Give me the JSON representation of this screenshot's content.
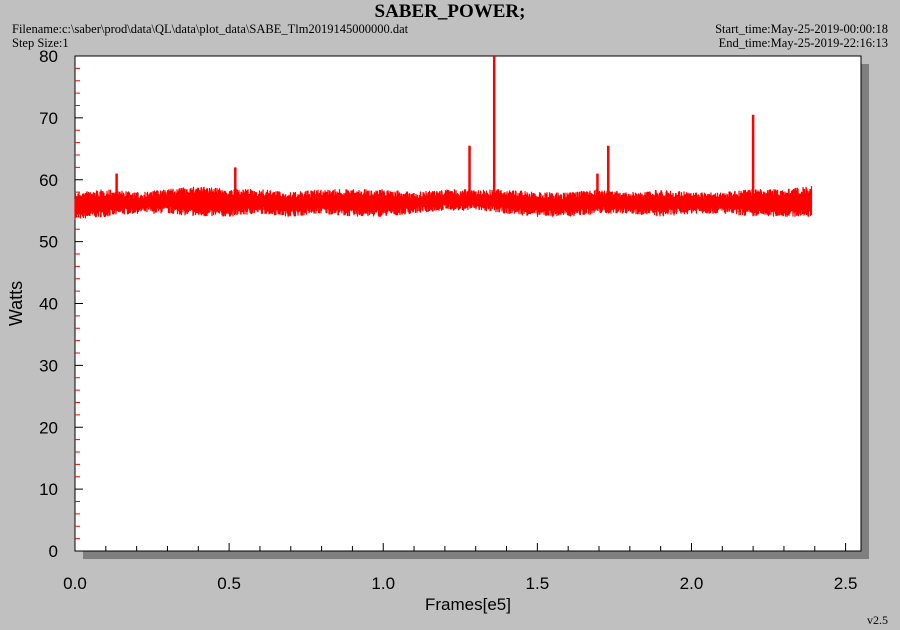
{
  "header": {
    "title": "SABER_POWER;",
    "filename": "Filename:c:\\saber\\prod\\data\\QL\\data\\plot_data\\SABE_Tlm2019145000000.dat",
    "step_size": "Step Size:1",
    "start_time": "Start_time:May-25-2019-00:00:18",
    "end_time": "End_time:May-25-2019-22:16:13"
  },
  "footer": {
    "version": "v2.5"
  },
  "colors": {
    "series": "#ff0000",
    "background": "#c0c0c0",
    "plot_area": "#ffffff",
    "shadow": "#7f7f7f"
  },
  "chart_data": {
    "type": "line",
    "title": "SABER_POWER;",
    "xlabel": "Frames[e5]",
    "ylabel": "Watts",
    "xlim": [
      0,
      2.55
    ],
    "ylim": [
      0,
      80
    ],
    "xticks": [
      "0.0",
      "0.5",
      "1.0",
      "1.5",
      "2.0",
      "2.5"
    ],
    "yticks": [
      "0",
      "10",
      "20",
      "30",
      "40",
      "50",
      "60",
      "70",
      "80"
    ],
    "grid": false,
    "legend": "none",
    "series": [
      {
        "color": "#ff0000",
        "x_range": [
          0,
          2.39
        ],
        "band": {
          "min": 54,
          "max": 59
        },
        "envelope": {
          "x": [
            0.0,
            0.1,
            0.2,
            0.3,
            0.4,
            0.5,
            0.6,
            0.7,
            0.8,
            0.9,
            1.0,
            1.1,
            1.2,
            1.3,
            1.4,
            1.5,
            1.6,
            1.7,
            1.8,
            1.9,
            2.0,
            2.1,
            2.2,
            2.3,
            2.39
          ],
          "min": [
            53.5,
            54.0,
            54.5,
            54.5,
            54.0,
            54.0,
            54.5,
            54.0,
            54.5,
            54.0,
            54.0,
            54.5,
            55.0,
            55.0,
            54.5,
            54.0,
            54.0,
            54.5,
            54.5,
            54.0,
            54.5,
            54.5,
            54.0,
            54.0,
            54.0
          ],
          "max": [
            58.0,
            58.5,
            58.0,
            58.5,
            59.0,
            58.5,
            58.5,
            58.0,
            58.5,
            58.5,
            58.5,
            58.0,
            58.5,
            58.5,
            58.5,
            58.0,
            58.0,
            58.5,
            58.0,
            58.5,
            58.0,
            58.0,
            58.5,
            58.5,
            59.0
          ]
        },
        "spikes": [
          {
            "x": 0.135,
            "y": 61
          },
          {
            "x": 0.52,
            "y": 62
          },
          {
            "x": 1.28,
            "y": 65.5
          },
          {
            "x": 1.36,
            "y": 80
          },
          {
            "x": 1.695,
            "y": 61
          },
          {
            "x": 1.73,
            "y": 65.5
          },
          {
            "x": 2.2,
            "y": 70.5
          }
        ]
      }
    ]
  }
}
